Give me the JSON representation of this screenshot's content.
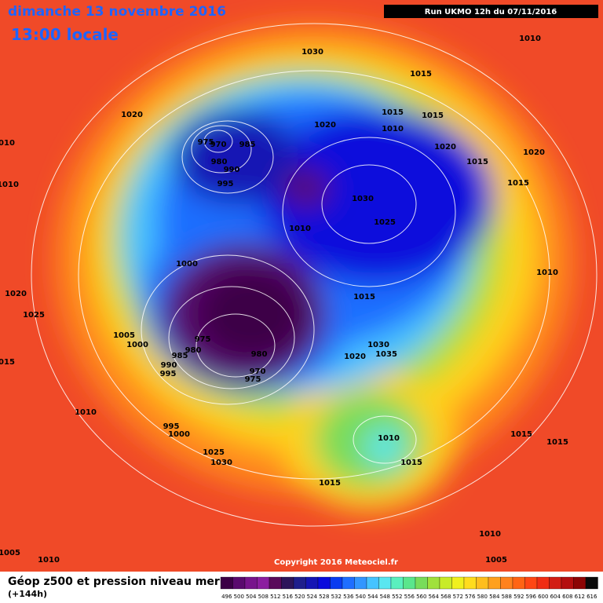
{
  "header": {
    "title": "dimanche 13 novembre 2016",
    "subtitle": "13:00 locale",
    "run": "Run UKMO 12h du 07/11/2016"
  },
  "isobar_labels": [
    1030,
    1010,
    1015,
    1020,
    1020,
    1015,
    1010,
    1015,
    975,
    970,
    985,
    980,
    990,
    1010,
    1020,
    1020,
    1015,
    995,
    1010,
    1015,
    1030,
    1025,
    1010,
    1000,
    1010,
    1020,
    1015,
    1025,
    1005,
    1000,
    975,
    980,
    985,
    1030,
    1035,
    980,
    1020,
    1015,
    990,
    995,
    970,
    975,
    1010,
    995,
    1000,
    1010,
    1015,
    1015,
    1025,
    1030,
    1015,
    1015,
    1010,
    1005,
    1010,
    1005
  ],
  "copyright": "Copyright 2016 Meteociel.fr",
  "legend": {
    "title": "Géop z500 et pression niveau mer",
    "subtitle": "(+144h)",
    "labels": [
      496,
      500,
      504,
      508,
      512,
      516,
      520,
      524,
      528,
      532,
      536,
      540,
      544,
      548,
      552,
      556,
      560,
      564,
      568,
      572,
      576,
      580,
      584,
      588,
      592,
      596,
      600,
      604,
      608,
      612,
      616
    ],
    "colors": [
      "#3c0046",
      "#5a0a6e",
      "#78148c",
      "#8c1ea0",
      "#5a0a5a",
      "#2d145a",
      "#1e1e8c",
      "#1414b4",
      "#0a0adc",
      "#0a3cf0",
      "#1e6eff",
      "#3296ff",
      "#46c3ff",
      "#5ae6f0",
      "#5af0be",
      "#5ae68c",
      "#78dc5a",
      "#a0e13c",
      "#c8eb28",
      "#f0f01e",
      "#ffdc1e",
      "#ffbe1e",
      "#ffa01e",
      "#ff821e",
      "#ff6414",
      "#ff4614",
      "#f02d14",
      "#d21e14",
      "#b40f0f",
      "#8c0505",
      "#0a0a0a"
    ]
  }
}
